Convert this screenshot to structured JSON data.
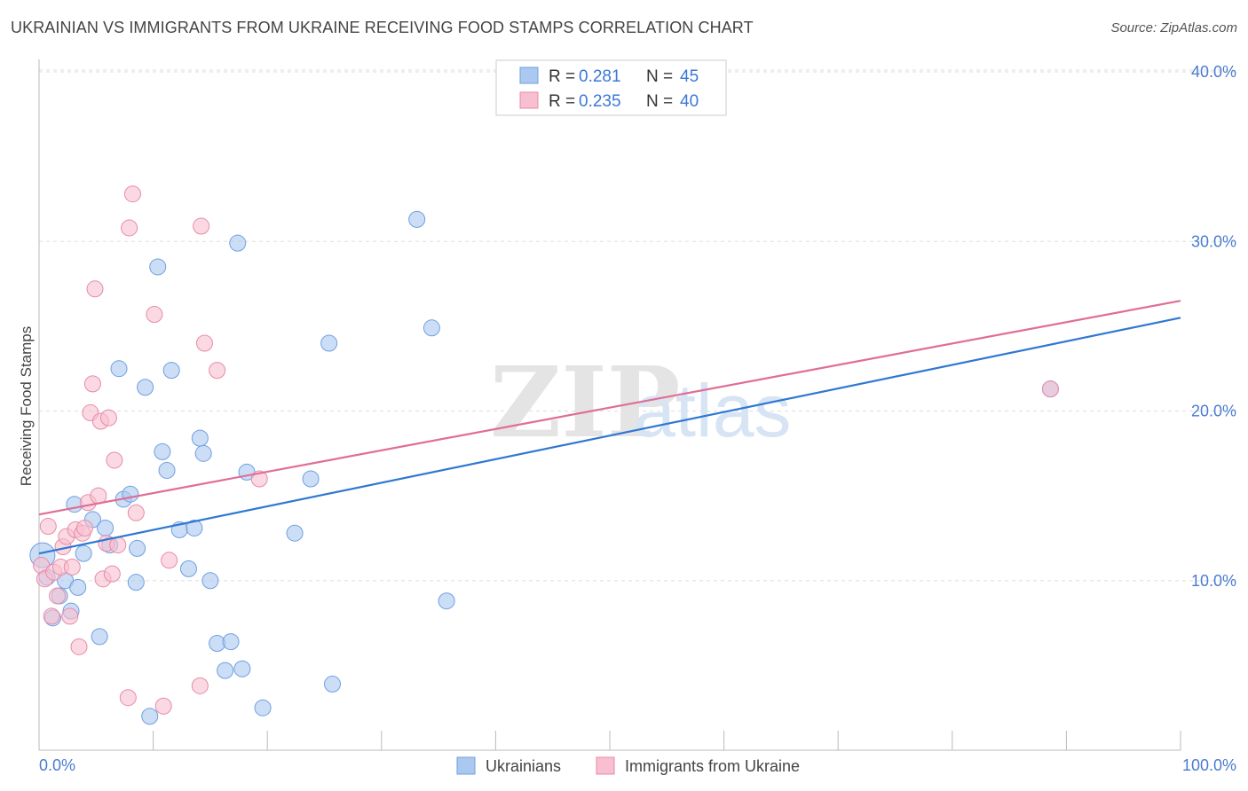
{
  "header": {
    "title": "UKRAINIAN VS IMMIGRANTS FROM UKRAINE RECEIVING FOOD STAMPS CORRELATION CHART",
    "source": "Source: ZipAtlas.com"
  },
  "watermark": {
    "zip": "ZIP",
    "atlas": "atlas"
  },
  "colors": {
    "blue_fill": "#aac8f0",
    "blue_stroke": "#6f9fe0",
    "blue_line": "#2f78d2",
    "pink_fill": "#f8bfd0",
    "pink_stroke": "#e88aa8",
    "pink_line": "#e06d96",
    "tick_text": "#4a7bd0",
    "grid": "#dddddd"
  },
  "legend": {
    "rows": [
      {
        "r_label": "R =",
        "r_value": "0.281",
        "n_label": "N =",
        "n_value": "45"
      },
      {
        "r_label": "R =",
        "r_value": "0.235",
        "n_label": "N =",
        "n_value": "40"
      }
    ]
  },
  "chart_data": {
    "type": "scatter",
    "xlabel": "",
    "ylabel": "Receiving Food Stamps",
    "xlim": [
      0,
      100
    ],
    "ylim": [
      0,
      40
    ],
    "y_ticks": [
      "10.0%",
      "20.0%",
      "30.0%",
      "40.0%"
    ],
    "x_tick_labels": {
      "min": "0.0%",
      "max": "100.0%"
    },
    "grid": true,
    "legend_position": "top-center",
    "series": [
      {
        "name": "Ukrainians",
        "r": 0.281,
        "n": 45,
        "trend": {
          "x": [
            0,
            100
          ],
          "y": [
            11.6,
            25.5
          ]
        },
        "points": [
          [
            0.3,
            11.5
          ],
          [
            0.7,
            10.2
          ],
          [
            1.2,
            7.8
          ],
          [
            1.8,
            9.1
          ],
          [
            2.3,
            10.0
          ],
          [
            2.8,
            8.2
          ],
          [
            3.1,
            14.5
          ],
          [
            3.4,
            9.6
          ],
          [
            3.9,
            11.6
          ],
          [
            4.7,
            13.6
          ],
          [
            5.3,
            6.7
          ],
          [
            5.8,
            13.1
          ],
          [
            6.2,
            12.1
          ],
          [
            7.0,
            22.5
          ],
          [
            7.4,
            14.8
          ],
          [
            8.0,
            15.1
          ],
          [
            8.5,
            9.9
          ],
          [
            8.6,
            11.9
          ],
          [
            9.3,
            21.4
          ],
          [
            9.7,
            2.0
          ],
          [
            10.4,
            28.5
          ],
          [
            10.8,
            17.6
          ],
          [
            11.2,
            16.5
          ],
          [
            11.6,
            22.4
          ],
          [
            12.3,
            13.0
          ],
          [
            13.1,
            10.7
          ],
          [
            13.6,
            13.1
          ],
          [
            14.1,
            18.4
          ],
          [
            14.4,
            17.5
          ],
          [
            15.0,
            10.0
          ],
          [
            15.6,
            6.3
          ],
          [
            16.3,
            4.7
          ],
          [
            16.8,
            6.4
          ],
          [
            17.4,
            29.9
          ],
          [
            17.8,
            4.8
          ],
          [
            18.2,
            16.4
          ],
          [
            19.6,
            2.5
          ],
          [
            22.4,
            12.8
          ],
          [
            23.8,
            16.0
          ],
          [
            25.4,
            24.0
          ],
          [
            25.7,
            3.9
          ],
          [
            33.1,
            31.3
          ],
          [
            34.4,
            24.9
          ],
          [
            35.7,
            8.8
          ],
          [
            88.6,
            21.3
          ]
        ]
      },
      {
        "name": "Immigrants from Ukraine",
        "r": 0.235,
        "n": 40,
        "trend": {
          "x": [
            0,
            100
          ],
          "y": [
            13.9,
            26.5
          ]
        },
        "points": [
          [
            0.2,
            10.9
          ],
          [
            0.5,
            10.1
          ],
          [
            0.8,
            13.2
          ],
          [
            1.1,
            7.9
          ],
          [
            1.3,
            10.5
          ],
          [
            1.6,
            9.1
          ],
          [
            1.9,
            10.8
          ],
          [
            2.1,
            12.0
          ],
          [
            2.4,
            12.6
          ],
          [
            2.7,
            7.9
          ],
          [
            2.9,
            10.8
          ],
          [
            3.2,
            13.0
          ],
          [
            3.5,
            6.1
          ],
          [
            3.8,
            12.8
          ],
          [
            4.0,
            13.1
          ],
          [
            4.3,
            14.6
          ],
          [
            4.5,
            19.9
          ],
          [
            4.7,
            21.6
          ],
          [
            4.9,
            27.2
          ],
          [
            5.2,
            15.0
          ],
          [
            5.4,
            19.4
          ],
          [
            5.6,
            10.1
          ],
          [
            5.9,
            12.2
          ],
          [
            6.1,
            19.6
          ],
          [
            6.4,
            10.4
          ],
          [
            6.6,
            17.1
          ],
          [
            6.9,
            12.1
          ],
          [
            7.8,
            3.1
          ],
          [
            7.9,
            30.8
          ],
          [
            8.2,
            32.8
          ],
          [
            8.5,
            14.0
          ],
          [
            10.1,
            25.7
          ],
          [
            10.9,
            2.6
          ],
          [
            11.4,
            11.2
          ],
          [
            14.1,
            3.8
          ],
          [
            14.2,
            30.9
          ],
          [
            14.5,
            24.0
          ],
          [
            15.6,
            22.4
          ],
          [
            19.3,
            16.0
          ],
          [
            88.6,
            21.3
          ]
        ]
      }
    ]
  }
}
